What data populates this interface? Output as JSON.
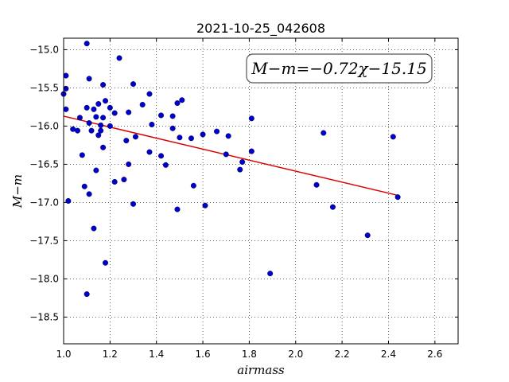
{
  "chart_data": {
    "type": "scatter",
    "title": "2021-10-25_042608",
    "xlabel": "airmass",
    "ylabel": "M−m",
    "xlim": [
      1.0,
      2.7
    ],
    "ylim": [
      -14.85,
      -18.85
    ],
    "y_inverted": true,
    "grid": true,
    "x_ticks": [
      "1.0",
      "1.2",
      "1.4",
      "1.6",
      "1.8",
      "2.0",
      "2.2",
      "2.4",
      "2.6"
    ],
    "y_ticks": [
      "−15.0",
      "−15.5",
      "−16.0",
      "−16.5",
      "−17.0",
      "−17.5",
      "−18.0",
      "−18.5"
    ],
    "annotation": "M−m=−0.72χ−15.15",
    "colors": {
      "points": "#0000cc",
      "fit_line": "#dd0000"
    },
    "fit_line": {
      "slope": -0.72,
      "intercept": -15.15,
      "x_range": [
        1.0,
        2.44
      ]
    },
    "points": [
      [
        1.0,
        -15.58
      ],
      [
        1.01,
        -15.78
      ],
      [
        1.01,
        -15.51
      ],
      [
        1.01,
        -15.34
      ],
      [
        1.02,
        -16.98
      ],
      [
        1.04,
        -16.04
      ],
      [
        1.06,
        -16.06
      ],
      [
        1.07,
        -15.89
      ],
      [
        1.08,
        -16.38
      ],
      [
        1.09,
        -16.79
      ],
      [
        1.1,
        -15.76
      ],
      [
        1.1,
        -14.92
      ],
      [
        1.11,
        -15.38
      ],
      [
        1.11,
        -15.96
      ],
      [
        1.11,
        -16.89
      ],
      [
        1.12,
        -16.06
      ],
      [
        1.13,
        -15.78
      ],
      [
        1.13,
        -17.34
      ],
      [
        1.14,
        -15.88
      ],
      [
        1.14,
        -16.58
      ],
      [
        1.15,
        -15.71
      ],
      [
        1.15,
        -16.12
      ],
      [
        1.16,
        -15.99
      ],
      [
        1.16,
        -16.06
      ],
      [
        1.17,
        -15.89
      ],
      [
        1.17,
        -15.46
      ],
      [
        1.17,
        -16.28
      ],
      [
        1.18,
        -15.67
      ],
      [
        1.18,
        -17.79
      ],
      [
        1.2,
        -15.76
      ],
      [
        1.2,
        -16.0
      ],
      [
        1.22,
        -15.83
      ],
      [
        1.22,
        -16.73
      ],
      [
        1.24,
        -15.11
      ],
      [
        1.26,
        -16.7
      ],
      [
        1.27,
        -16.19
      ],
      [
        1.28,
        -15.82
      ],
      [
        1.28,
        -16.5
      ],
      [
        1.3,
        -15.45
      ],
      [
        1.3,
        -17.02
      ],
      [
        1.31,
        -16.14
      ],
      [
        1.34,
        -15.72
      ],
      [
        1.37,
        -15.58
      ],
      [
        1.37,
        -16.34
      ],
      [
        1.38,
        -15.98
      ],
      [
        1.42,
        -15.86
      ],
      [
        1.42,
        -16.39
      ],
      [
        1.44,
        -16.51
      ],
      [
        1.47,
        -15.87
      ],
      [
        1.47,
        -16.03
      ],
      [
        1.49,
        -17.09
      ],
      [
        1.49,
        -15.7
      ],
      [
        1.5,
        -16.15
      ],
      [
        1.51,
        -15.66
      ],
      [
        1.55,
        -16.16
      ],
      [
        1.56,
        -16.78
      ],
      [
        1.6,
        -16.11
      ],
      [
        1.61,
        -17.04
      ],
      [
        1.66,
        -16.07
      ],
      [
        1.7,
        -16.37
      ],
      [
        1.71,
        -16.13
      ],
      [
        1.76,
        -16.57
      ],
      [
        1.77,
        -16.47
      ],
      [
        1.81,
        -15.9
      ],
      [
        1.81,
        -16.33
      ],
      [
        1.89,
        -17.93
      ],
      [
        2.09,
        -16.77
      ],
      [
        2.12,
        -16.09
      ],
      [
        2.16,
        -17.06
      ],
      [
        2.31,
        -17.43
      ],
      [
        2.42,
        -16.14
      ],
      [
        2.44,
        -16.93
      ],
      [
        1.1,
        -18.2
      ]
    ]
  }
}
